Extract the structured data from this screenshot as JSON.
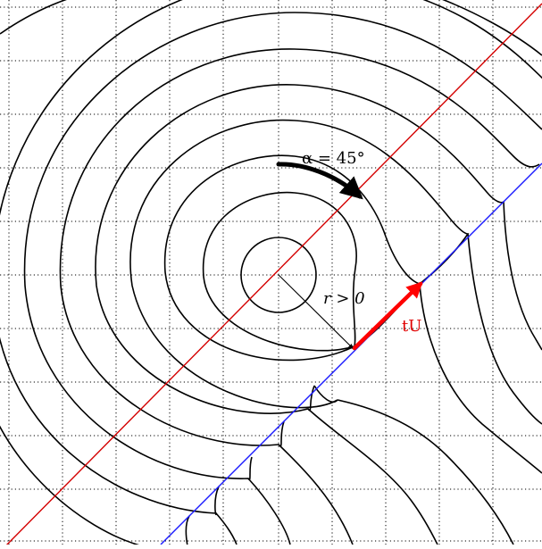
{
  "labels": {
    "angle": "α = 45°",
    "radius": "r > 0",
    "vector": "tU"
  },
  "colors": {
    "background": "#ffffff",
    "grid": "#000000",
    "contour": "#000000",
    "axis_line": "#d40000",
    "boundary_line": "#1a1aff",
    "vector": "#ff0000"
  },
  "figure": {
    "angle_deg": 45,
    "grid": "dotted"
  }
}
